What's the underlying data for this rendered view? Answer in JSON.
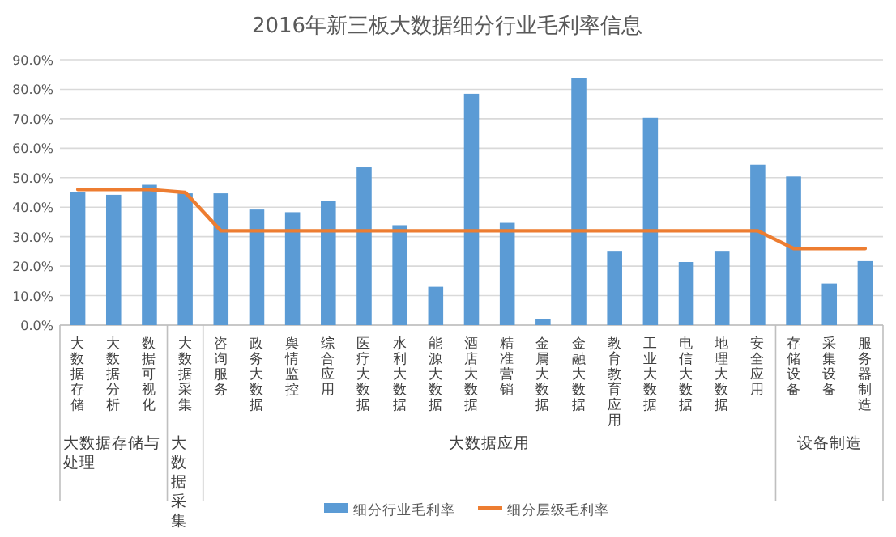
{
  "chart_data": {
    "type": "bar",
    "title": "2016年新三板大数据细分行业毛利率信息",
    "categories": [
      "大数据存储",
      "大数据分析",
      "数据可视化",
      "大数据采集",
      "咨询服务",
      "政务大数据",
      "舆情监控",
      "综合应用",
      "医疗大数据",
      "水利大数据",
      "能源大数据",
      "酒店大数据",
      "精准营销",
      "金属大数据",
      "金融大数据",
      "教育教育应用",
      "工业大数据",
      "电信大数据",
      "地理大数据",
      "安全应用",
      "存储设备",
      "采集设备",
      "服务器制造"
    ],
    "series": [
      {
        "name": "细分行业毛利率",
        "color": "#5b9bd5",
        "values": [
          45.1,
          44.2,
          47.6,
          44.7,
          44.7,
          39.2,
          38.3,
          42.0,
          53.5,
          33.9,
          13.0,
          78.5,
          34.7,
          2.0,
          83.9,
          25.2,
          70.3,
          21.4,
          25.2,
          54.4,
          50.4,
          14.1,
          21.7
        ]
      },
      {
        "name": "细分层级毛利率",
        "type": "line",
        "color": "#ed7d31",
        "values": [
          46.0,
          46.0,
          46.0,
          45.0,
          32.0,
          32.0,
          32.0,
          32.0,
          32.0,
          32.0,
          32.0,
          32.0,
          32.0,
          32.0,
          32.0,
          32.0,
          32.0,
          32.0,
          32.0,
          32.0,
          26.0,
          26.0,
          26.0
        ]
      }
    ],
    "ylim": [
      0,
      90
    ],
    "yticks": [
      {
        "value": 0,
        "label": "0.0%"
      },
      {
        "value": 10,
        "label": "10.0%"
      },
      {
        "value": 20,
        "label": "20.0%"
      },
      {
        "value": 30,
        "label": "30.0%"
      },
      {
        "value": 40,
        "label": "40.0%"
      },
      {
        "value": 50,
        "label": "50.0%"
      },
      {
        "value": 60,
        "label": "60.0%"
      },
      {
        "value": 70,
        "label": "70.0%"
      },
      {
        "value": 80,
        "label": "80.0%"
      },
      {
        "value": 90,
        "label": "90.0%"
      }
    ],
    "grid": "y",
    "legend": "bottom",
    "marker": "none",
    "line_style": "solid",
    "annotations": [
      "大数据存储与处理",
      "大数据采集",
      "大数据应用",
      "设备制造"
    ]
  }
}
